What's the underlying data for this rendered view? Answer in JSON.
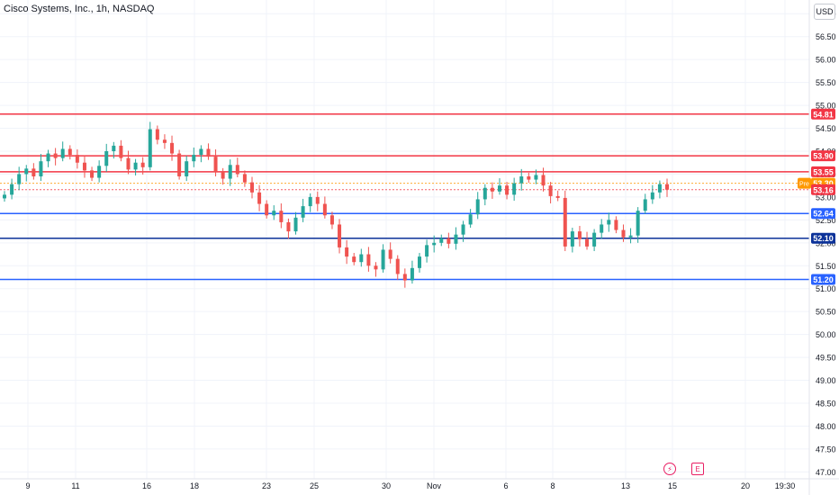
{
  "header": {
    "title": "Cisco Systems, Inc., 1h, NASDAQ",
    "currency": "USD"
  },
  "events": {
    "dividend_icon": "⚡",
    "earnings_icon": "E"
  },
  "colors": {
    "up": "#26a69a",
    "down": "#ef5350",
    "resistance": "#f23645",
    "support_blue": "#2962ff",
    "support_navy": "#0c3299",
    "pre": "#ff9800"
  },
  "chart_data": {
    "type": "candlestick",
    "ylim": [
      46.85,
      57.3
    ],
    "y_ticks": [
      "57.00",
      "56.50",
      "56.00",
      "55.50",
      "55.00",
      "54.50",
      "54.00",
      "53.50",
      "53.00",
      "52.50",
      "52.00",
      "51.50",
      "51.00",
      "50.50",
      "50.00",
      "49.50",
      "49.00",
      "48.50",
      "48.00",
      "47.50",
      "47.00"
    ],
    "x_ticks": [
      "9",
      "11",
      "16",
      "18",
      "23",
      "25",
      "30",
      "Nov",
      "6",
      "8",
      "13",
      "15",
      "20",
      "19:30"
    ],
    "horizontal_lines": [
      {
        "value": 54.81,
        "label": "54.81",
        "color": "#f23645"
      },
      {
        "value": 53.9,
        "label": "53.90",
        "color": "#f23645"
      },
      {
        "value": 53.55,
        "label": "53.55",
        "color": "#f23645"
      },
      {
        "value": 52.64,
        "label": "52.64",
        "color": "#2962ff"
      },
      {
        "value": 52.1,
        "label": "52.10",
        "color": "#0c3299"
      },
      {
        "value": 51.2,
        "label": "51.20",
        "color": "#2962ff"
      }
    ],
    "price_markers": [
      {
        "value": 53.3,
        "label": "53.30",
        "tag": "Pre",
        "color": "#ff9800"
      },
      {
        "value": 53.16,
        "label": "53.16",
        "color": "#f23645"
      }
    ],
    "series": [
      {
        "name": "",
        "closes": [
          53.05,
          53.28,
          53.5,
          53.62,
          53.45,
          53.78,
          53.95,
          53.85,
          54.05,
          53.92,
          53.75,
          53.58,
          53.42,
          53.68,
          54.0,
          54.12,
          53.85,
          53.6,
          53.75,
          53.65,
          54.48,
          54.25,
          54.18,
          53.95,
          53.45,
          53.78,
          53.92,
          54.05,
          53.88,
          53.55,
          53.4,
          53.7,
          53.5,
          53.32,
          53.1,
          52.85,
          52.6,
          52.7,
          52.45,
          52.25,
          52.55,
          52.8,
          53.0,
          52.85,
          52.6,
          52.4,
          51.9,
          51.7,
          51.58,
          51.75,
          51.5,
          51.42,
          51.85,
          51.65,
          51.32,
          51.18,
          51.45,
          51.7,
          51.95,
          52.0,
          52.1,
          51.98,
          52.18,
          52.4,
          52.62,
          52.95,
          53.2,
          53.12,
          53.25,
          53.05,
          53.3,
          53.45,
          53.38,
          53.48,
          53.25,
          53.02,
          52.98,
          51.92,
          52.25,
          52.08,
          51.92,
          52.22,
          52.4,
          52.5,
          52.28,
          52.12,
          52.16,
          52.7,
          52.95,
          53.1,
          53.28,
          53.16
        ]
      }
    ]
  }
}
